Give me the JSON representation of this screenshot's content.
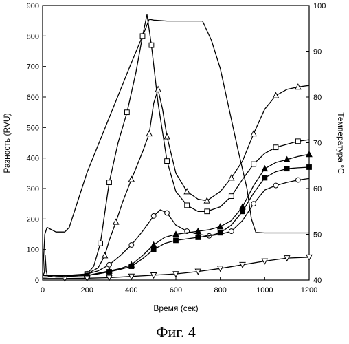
{
  "chart_data": {
    "type": "line",
    "caption": "Фиг. 4",
    "xlabel": "Время (сек)",
    "ylabel_left": "Разность (RVU)",
    "ylabel_right": "Температура °С",
    "xlim": [
      0,
      1200
    ],
    "ylim_left": [
      0,
      900
    ],
    "ylim_right": [
      40,
      100
    ],
    "x_ticks": [
      "0",
      "200",
      "400",
      "600",
      "800",
      "1000",
      "1200"
    ],
    "y_left_ticks": [
      "0",
      "100",
      "200",
      "300",
      "400",
      "500",
      "600",
      "700",
      "800",
      "900"
    ],
    "y_right_ticks": [
      "40",
      "50",
      "60",
      "70",
      "80",
      "90",
      "100"
    ],
    "grid": false,
    "series": [
      {
        "marker": "none",
        "axis": "right",
        "x": [
          0,
          10,
          20,
          60,
          100,
          120,
          200,
          300,
          400,
          460,
          480,
          500,
          560,
          600,
          650,
          700,
          720,
          760,
          800,
          840,
          880,
          920,
          940,
          960,
          1000,
          1050,
          1100,
          1200
        ],
        "y": [
          40.5,
          50,
          51.5,
          50.5,
          50.5,
          51.5,
          63.5,
          75.5,
          87.5,
          94.5,
          97,
          96.8,
          96.6,
          96.6,
          96.6,
          96.6,
          96.6,
          92.4,
          86.2,
          77.3,
          68.4,
          60,
          53.4,
          50.4,
          50.3,
          50.3,
          50.3,
          50.3
        ]
      },
      {
        "marker": "square",
        "axis": "left",
        "x": [
          0,
          100,
          200,
          230,
          260,
          280,
          300,
          340,
          380,
          420,
          450,
          470,
          490,
          520,
          560,
          600,
          650,
          700,
          740,
          800,
          850,
          900,
          950,
          1000,
          1050,
          1100,
          1150,
          1200
        ],
        "y": [
          15,
          15,
          20,
          45,
          120,
          220,
          320,
          450,
          550,
          680,
          800,
          870,
          770,
          580,
          390,
          290,
          245,
          225,
          225,
          240,
          275,
          330,
          380,
          415,
          435,
          445,
          455,
          460
        ]
      },
      {
        "marker": "triangle-up",
        "axis": "left",
        "x": [
          0,
          100,
          200,
          250,
          280,
          300,
          330,
          360,
          400,
          450,
          480,
          500,
          520,
          540,
          560,
          600,
          650,
          700,
          740,
          800,
          850,
          900,
          950,
          1000,
          1050,
          1100,
          1150,
          1200
        ],
        "y": [
          10,
          12,
          20,
          40,
          80,
          130,
          190,
          255,
          330,
          420,
          480,
          580,
          625,
          560,
          470,
          350,
          290,
          265,
          260,
          290,
          335,
          390,
          480,
          560,
          605,
          625,
          633,
          638
        ]
      },
      {
        "marker": "circle",
        "axis": "left",
        "x": [
          0,
          100,
          200,
          250,
          300,
          350,
          400,
          450,
          500,
          530,
          560,
          600,
          650,
          700,
          750,
          800,
          850,
          900,
          950,
          1000,
          1050,
          1100,
          1150,
          1200
        ],
        "y": [
          10,
          12,
          20,
          30,
          50,
          80,
          115,
          160,
          210,
          230,
          220,
          180,
          160,
          150,
          145,
          150,
          160,
          195,
          250,
          295,
          310,
          320,
          328,
          333
        ]
      },
      {
        "marker": "triangle-up-filled",
        "axis": "left",
        "x": [
          0,
          100,
          200,
          250,
          300,
          350,
          400,
          450,
          500,
          550,
          600,
          650,
          700,
          750,
          800,
          850,
          900,
          950,
          1000,
          1050,
          1100,
          1150,
          1200
        ],
        "y": [
          10,
          12,
          15,
          22,
          30,
          38,
          50,
          80,
          115,
          140,
          150,
          155,
          160,
          165,
          175,
          195,
          240,
          310,
          365,
          385,
          395,
          405,
          412
        ]
      },
      {
        "marker": "square-filled",
        "axis": "left",
        "x": [
          0,
          100,
          200,
          250,
          300,
          350,
          400,
          450,
          500,
          550,
          600,
          650,
          700,
          750,
          800,
          850,
          900,
          950,
          1000,
          1050,
          1100,
          1150,
          1200
        ],
        "y": [
          10,
          12,
          15,
          20,
          27,
          35,
          45,
          70,
          100,
          120,
          130,
          135,
          140,
          145,
          155,
          180,
          225,
          285,
          335,
          355,
          365,
          368,
          370
        ]
      },
      {
        "marker": "triangle-down",
        "axis": "left",
        "x": [
          0,
          100,
          200,
          300,
          400,
          500,
          600,
          700,
          800,
          900,
          1000,
          1100,
          1200
        ],
        "y": [
          5,
          5,
          6,
          8,
          12,
          16,
          20,
          28,
          38,
          50,
          62,
          72,
          75
        ]
      },
      {
        "marker": "none",
        "axis": "left",
        "x": [
          0,
          8,
          12,
          16,
          20,
          25,
          40,
          60,
          100
        ],
        "y": [
          12,
          25,
          80,
          30,
          18,
          14,
          12,
          10,
          10
        ]
      }
    ]
  }
}
